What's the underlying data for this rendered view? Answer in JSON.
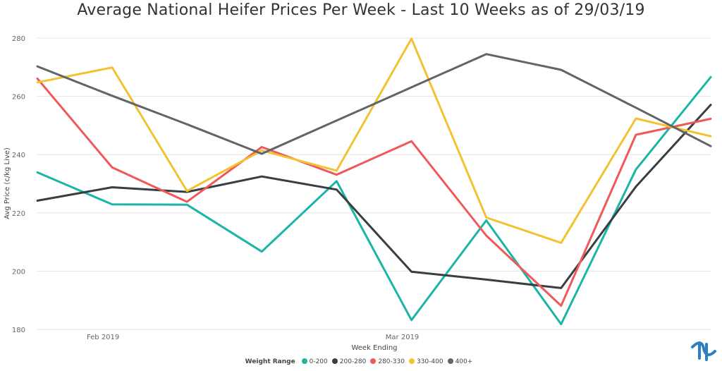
{
  "chart_data": {
    "type": "line",
    "title": "Average National Heifer Prices Per Week - Last 10 Weeks as of 29/03/19",
    "xlabel": "Week Ending",
    "ylabel": "Avg Price (c/kg Live)",
    "ylim": [
      180,
      280
    ],
    "yticks": [
      180,
      200,
      220,
      240,
      260,
      280
    ],
    "xtick_labels": [
      "Feb 2019",
      "Mar 2019"
    ],
    "grid": true,
    "legend_title": "Weight Range",
    "legend_position": "bottom",
    "series": [
      {
        "name": "0-200",
        "color": "#1ab5a5",
        "values": [
          233.9,
          222.9,
          222.8,
          206.7,
          230.9,
          183.2,
          217.4,
          181.8,
          234.9,
          266.6
        ]
      },
      {
        "name": "200-280",
        "color": "#373f43",
        "values": [
          224.2,
          228.8,
          227.2,
          232.5,
          228.0,
          199.8,
          197.1,
          194.2,
          229.0,
          257.1
        ]
      },
      {
        "name": "280-330",
        "color": "#f0595a",
        "values": [
          266.1,
          235.6,
          223.8,
          242.6,
          233.1,
          244.6,
          212.2,
          188.1,
          246.8,
          252.3
        ]
      },
      {
        "name": "330-400",
        "color": "#f2c230",
        "values": [
          264.8,
          269.9,
          227.5,
          241.4,
          234.5,
          279.8,
          218.4,
          209.7,
          252.4,
          246.3
        ]
      },
      {
        "name": "400+",
        "color": "#5f6568",
        "values": [
          270.3,
          260.2,
          250.4,
          240.3,
          251.7,
          263.1,
          274.5,
          269.1,
          256.1,
          242.9
        ]
      }
    ]
  }
}
